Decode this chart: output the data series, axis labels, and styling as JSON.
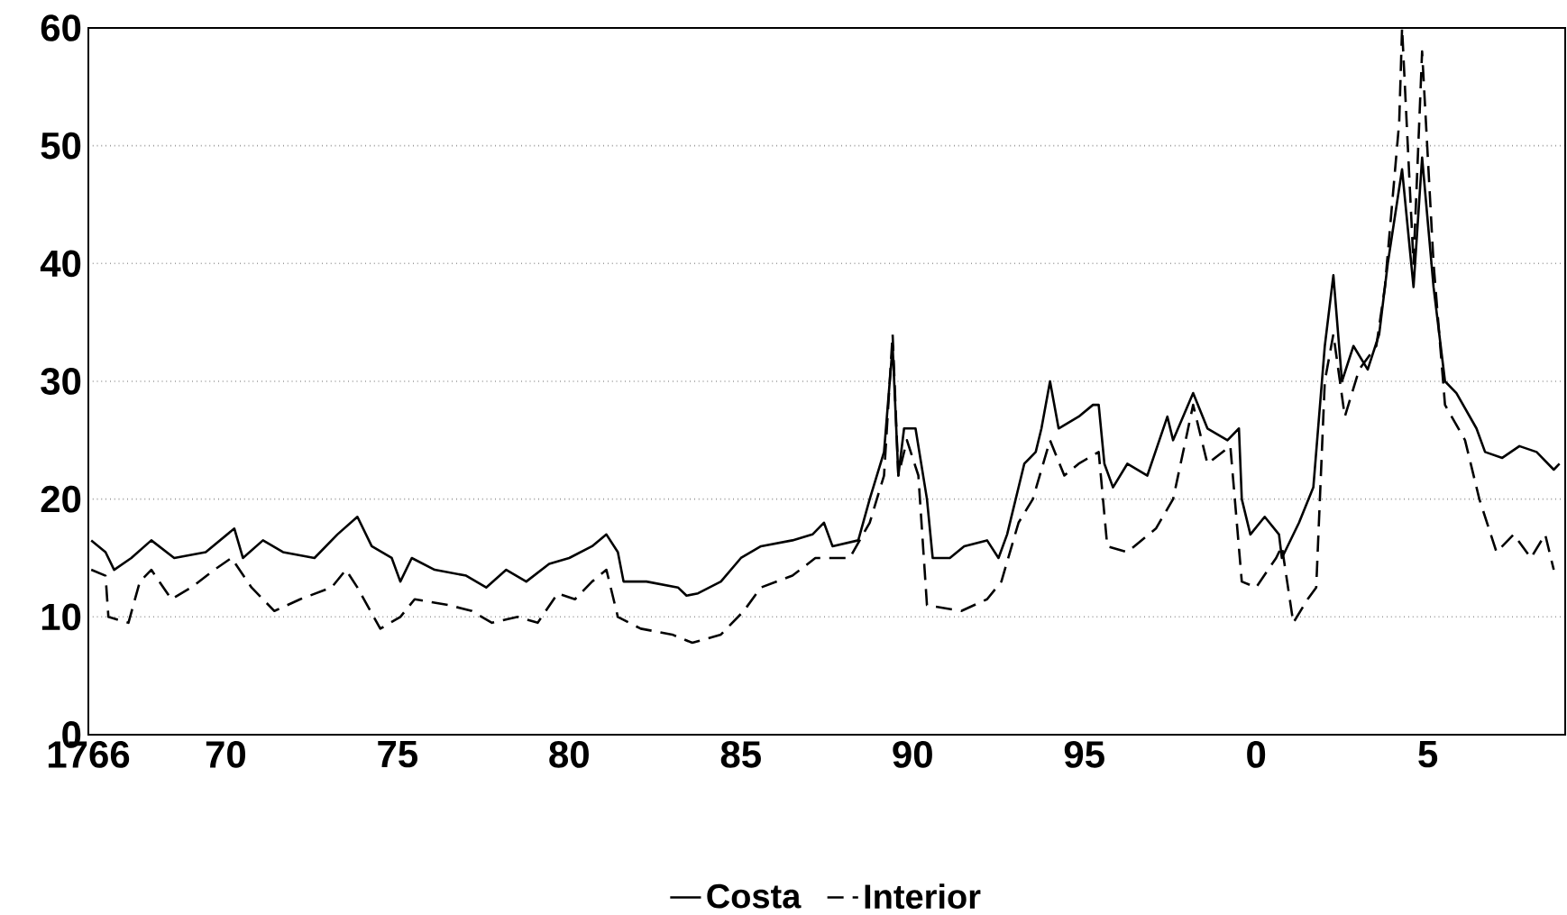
{
  "chart_data": {
    "type": "line",
    "xlim": [
      "1766",
      "1809"
    ],
    "ylim": [
      0,
      60
    ],
    "xticks": [
      {
        "value": "1766",
        "label": "1766"
      },
      {
        "value": "1770",
        "label": "70"
      },
      {
        "value": "1775",
        "label": "75"
      },
      {
        "value": "1780",
        "label": "80"
      },
      {
        "value": "1785",
        "label": "85"
      },
      {
        "value": "1790",
        "label": "90"
      },
      {
        "value": "1795",
        "label": "95"
      },
      {
        "value": "1800",
        "label": "0"
      },
      {
        "value": "1805",
        "label": "5"
      }
    ],
    "yticks": [
      0,
      10,
      20,
      30,
      40,
      50,
      60
    ],
    "grid": "y",
    "legend": "bottom",
    "marker": "none",
    "series": [
      {
        "name": "Costa",
        "color": "#000000",
        "line_style": "solid",
        "x": [
          "1766-02",
          "1766-07",
          "1766-10",
          "1767-04",
          "1767-11",
          "1768-07",
          "1769-06",
          "1770-04",
          "1770-07",
          "1771-02",
          "1771-09",
          "1772-08",
          "1773-04",
          "1773-11",
          "1774-04",
          "1774-11",
          "1775-02",
          "1775-06",
          "1776-02",
          "1777-01",
          "1777-08",
          "1778-03",
          "1778-10",
          "1779-06",
          "1780-01",
          "1780-09",
          "1781-02",
          "1781-06",
          "1781-08",
          "1782-04",
          "1783-03",
          "1783-06",
          "1783-10",
          "1784-06",
          "1785-01",
          "1785-08",
          "1786-07",
          "1787-02",
          "1787-06",
          "1787-09",
          "1788-06",
          "1788-10",
          "1789-03",
          "1789-06",
          "1789-08",
          "1789-10",
          "1790-02",
          "1790-06",
          "1790-08",
          "1791-02",
          "1791-07",
          "1792-03",
          "1792-07",
          "1792-10",
          "1793-04",
          "1793-08",
          "1793-10",
          "1794-01",
          "1794-04",
          "1794-11",
          "1795-04",
          "1795-06",
          "1795-08",
          "1795-11",
          "1796-04",
          "1796-11",
          "1797-06",
          "1797-08",
          "1798-03",
          "1798-08",
          "1799-03",
          "1799-07",
          "1799-08",
          "1799-11",
          "1800-04",
          "1800-09",
          "1800-10",
          "1801-04",
          "1801-09",
          "1802-01",
          "1802-04",
          "1802-07",
          "1802-11",
          "1803-04",
          "1803-08",
          "1803-11",
          "1804-04",
          "1804-08",
          "1804-11",
          "1805-03",
          "1805-07",
          "1805-11",
          "1806-06",
          "1806-09",
          "1807-03",
          "1807-09",
          "1808-03",
          "1808-09",
          "1808-11"
        ],
        "values": [
          16.5,
          15.5,
          14,
          15,
          16.5,
          15,
          15.5,
          17.5,
          15,
          16.5,
          15.5,
          15,
          17,
          18.5,
          16,
          15,
          13,
          15,
          14,
          13.5,
          12.5,
          14,
          13,
          14.5,
          15,
          16,
          17,
          15.5,
          13,
          13,
          12.5,
          11.8,
          12,
          13,
          15,
          16,
          16.5,
          17,
          18,
          16,
          16.5,
          20,
          24,
          33,
          22,
          26,
          26,
          20,
          15,
          15,
          16,
          16.5,
          15,
          17,
          23,
          24,
          26,
          30,
          26,
          27,
          28,
          28,
          23,
          21,
          23,
          22,
          27,
          25,
          29,
          26,
          25,
          26,
          20,
          17,
          18.5,
          17,
          15,
          18,
          21,
          33,
          39,
          30,
          33,
          31,
          34,
          40,
          48,
          38,
          49,
          38,
          30,
          29,
          26,
          24,
          23.5,
          24.5,
          24,
          22.5,
          23
        ]
      },
      {
        "name": "Interior",
        "color": "#000000",
        "line_style": "dashed",
        "x": [
          "1766-02",
          "1766-07",
          "1766-08",
          "1767-03",
          "1767-07",
          "1767-11",
          "1768-06",
          "1769-01",
          "1769-09",
          "1770-03",
          "1770-10",
          "1771-06",
          "1772-03",
          "1773-02",
          "1773-07",
          "1773-11",
          "1774-07",
          "1775-02",
          "1775-07",
          "1776-07",
          "1777-03",
          "1777-10",
          "1778-07",
          "1779-02",
          "1779-09",
          "1780-03",
          "1780-09",
          "1781-02",
          "1781-06",
          "1782-02",
          "1783-01",
          "1783-08",
          "1784-06",
          "1785-02",
          "1785-08",
          "1786-07",
          "1787-03",
          "1788-03",
          "1788-10",
          "1789-03",
          "1789-06",
          "1789-08",
          "1789-11",
          "1790-03",
          "1790-06",
          "1791-06",
          "1792-03",
          "1792-08",
          "1793-02",
          "1793-07",
          "1794-01",
          "1794-06",
          "1794-11",
          "1795-06",
          "1795-09",
          "1796-04",
          "1797-02",
          "1797-08",
          "1798-03",
          "1798-08",
          "1799-04",
          "1799-08",
          "1800-01",
          "1800-08",
          "1800-10",
          "1801-02",
          "1801-07",
          "1801-10",
          "1802-01",
          "1802-04",
          "1802-08",
          "1803-01",
          "1803-07",
          "1803-10",
          "1804-03",
          "1804-04",
          "1804-08",
          "1804-11",
          "1805-03",
          "1805-07",
          "1806-02",
          "1806-07",
          "1807-01",
          "1807-07",
          "1808-01",
          "1808-06",
          "1808-09"
        ],
        "values": [
          14,
          13.5,
          10,
          9.5,
          13,
          14,
          11.5,
          12.5,
          14,
          15,
          12.5,
          10.5,
          11.5,
          12.5,
          14,
          12.5,
          9,
          10,
          11.5,
          11,
          10.5,
          9.5,
          10,
          9.5,
          12,
          11.5,
          13,
          14,
          10,
          9,
          8.5,
          7.8,
          8.5,
          10.5,
          12.5,
          13.5,
          15,
          15,
          18,
          22,
          34,
          22,
          25,
          22,
          11,
          10.5,
          11.5,
          13,
          18,
          20,
          25,
          22,
          23,
          24,
          16,
          15.5,
          17.5,
          20,
          28,
          23,
          24.5,
          13,
          12.5,
          15,
          16,
          9.5,
          11.5,
          12.5,
          30,
          34,
          27,
          31,
          33,
          38,
          52,
          60,
          40,
          58,
          40,
          28,
          25,
          20,
          15.5,
          17,
          15,
          17,
          14
        ]
      }
    ]
  }
}
